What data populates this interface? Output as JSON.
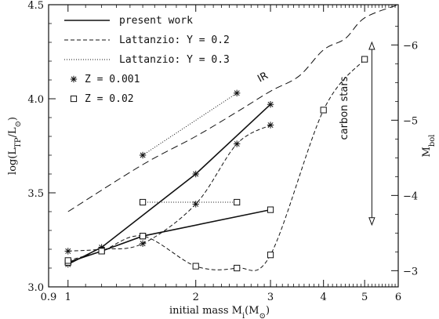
{
  "chart_data": {
    "type": "line",
    "xlabel_parts": {
      "main": "initial mass  M",
      "sub": "i",
      "unit": "(M",
      "unit_sub": "⊙",
      "unit_close": ")"
    },
    "ylabel_parts": {
      "main": "log(L",
      "sub": "TP",
      "mid": "/L",
      "sub2": "⊙",
      "close": ")"
    },
    "y2label_parts": {
      "main": "M",
      "sub": "bol"
    },
    "x_scale": "log",
    "xlim": [
      0.9,
      6
    ],
    "ylim": [
      3.0,
      4.5
    ],
    "x_ticks": [
      {
        "value": 0.9,
        "label": "0.9"
      },
      {
        "value": 1,
        "label": "1"
      },
      {
        "value": 2,
        "label": "2"
      },
      {
        "value": 3,
        "label": "3"
      },
      {
        "value": 4,
        "label": "4"
      },
      {
        "value": 5,
        "label": "5"
      },
      {
        "value": 6,
        "label": "6"
      }
    ],
    "y_ticks": [
      {
        "value": 3.0,
        "label": "3.0"
      },
      {
        "value": 3.5,
        "label": "3.5"
      },
      {
        "value": 4.0,
        "label": "4.0"
      },
      {
        "value": 4.5,
        "label": "4.5"
      }
    ],
    "y2_ticks": [
      {
        "value": -3,
        "label": "−3"
      },
      {
        "value": -4,
        "label": "−4"
      },
      {
        "value": -5,
        "label": "−5"
      },
      {
        "value": -6,
        "label": "−6"
      }
    ],
    "y2_mapping": {
      "a": 4.715,
      "b": -0.4
    },
    "legend": [
      {
        "style": "solid",
        "label": "present work"
      },
      {
        "style": "dashed",
        "label": "Lattanzio: Y = 0.2"
      },
      {
        "style": "dotted",
        "label": "Lattanzio: Y = 0.3"
      },
      {
        "style": "marker-star",
        "label": "Z = 0.001"
      },
      {
        "style": "marker-square",
        "label": "Z = 0.02"
      }
    ],
    "series": [
      {
        "line": "solid",
        "marker": "star",
        "x": [
          1.0,
          1.2,
          2.0,
          3.0
        ],
        "y": [
          3.12,
          3.21,
          3.6,
          3.97
        ]
      },
      {
        "line": "solid",
        "marker": "square",
        "x": [
          1.0,
          1.2,
          1.5,
          3.0
        ],
        "y": [
          3.13,
          3.19,
          3.27,
          3.41
        ]
      },
      {
        "line": "dashed",
        "marker": "star",
        "x": [
          1.0,
          1.2,
          1.5,
          2.0,
          2.5,
          3.0
        ],
        "y": [
          3.19,
          3.2,
          3.23,
          3.44,
          3.76,
          3.86
        ]
      },
      {
        "line": "dashed",
        "marker": "square",
        "x": [
          1.0,
          1.2,
          1.5,
          2.0,
          2.5,
          3.0,
          4.0,
          5.0
        ],
        "y": [
          3.14,
          3.19,
          3.27,
          3.11,
          3.1,
          3.17,
          3.94,
          4.21
        ]
      },
      {
        "line": "dotted",
        "marker": "star",
        "x": [
          1.5,
          2.5
        ],
        "y": [
          3.7,
          4.03
        ]
      },
      {
        "line": "dotted",
        "marker": "square",
        "x": [
          1.5,
          2.5
        ],
        "y": [
          3.45,
          3.45
        ]
      },
      {
        "line": "long-dashed",
        "marker": "none",
        "x": [
          1.0,
          1.5,
          2.0,
          2.5,
          3.0,
          3.5,
          4.0,
          4.5,
          5.0,
          6.0
        ],
        "y": [
          3.4,
          3.65,
          3.8,
          3.93,
          4.04,
          4.12,
          4.26,
          4.32,
          4.43,
          4.5
        ]
      }
    ],
    "annotations": [
      {
        "text": "IR",
        "x": 2.9,
        "y": 4.1,
        "rotate": -28
      },
      {
        "text": "carbon stars",
        "x": 4.55,
        "y": 3.95,
        "rotate": -90
      }
    ],
    "carbon_stars_arrow": {
      "x": 5.2,
      "y_top": 4.3,
      "y_bottom": 3.33
    }
  }
}
